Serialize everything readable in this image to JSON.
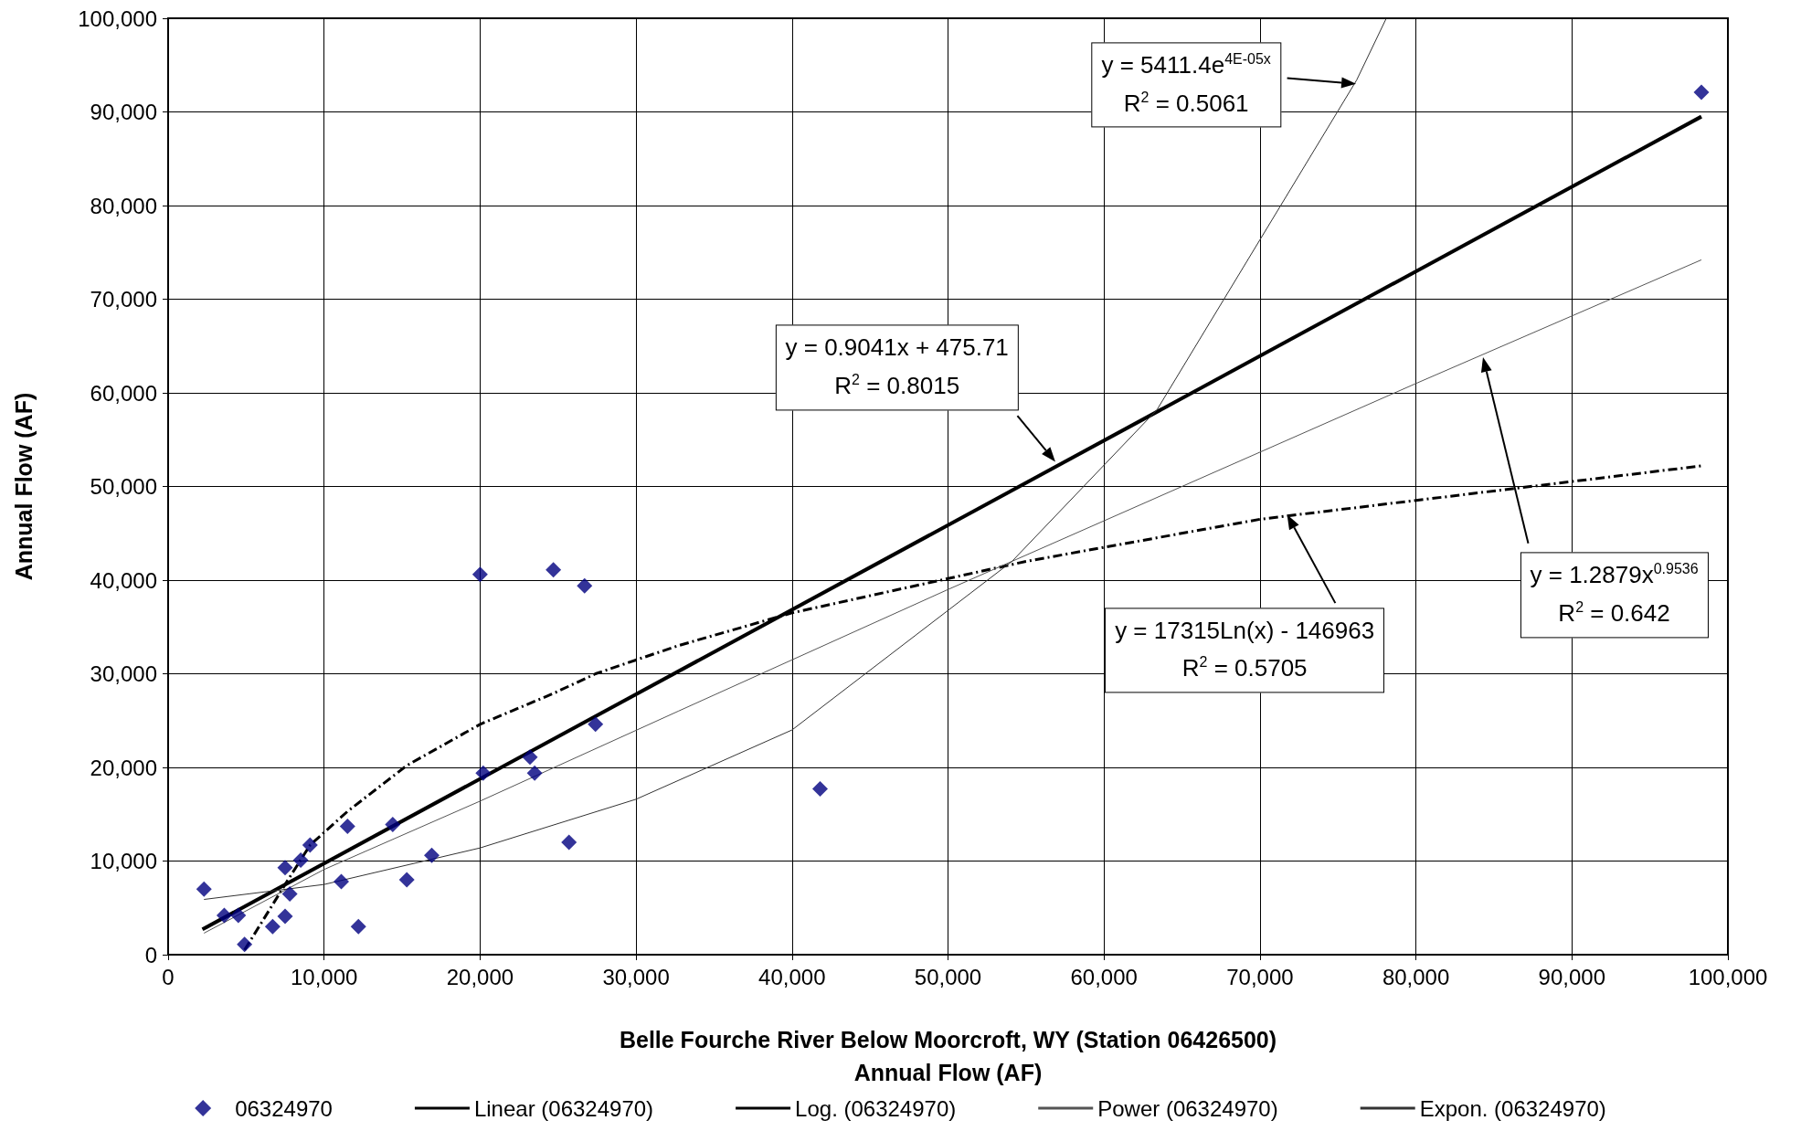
{
  "chart_data": {
    "type": "scatter",
    "xlabel": "Belle Fourche River Below Moorcroft, WY (Station 06426500)\nAnnual Flow (AF)",
    "ylabel": "Annual Flow (AF)",
    "xlim": [
      0,
      100000
    ],
    "xticks": [
      {
        "value": 0,
        "label": "0"
      },
      {
        "value": 10000,
        "label": "10,000"
      },
      {
        "value": 20000,
        "label": "20,000"
      },
      {
        "value": 30000,
        "label": "30,000"
      },
      {
        "value": 40000,
        "label": "40,000"
      },
      {
        "value": 50000,
        "label": "50,000"
      },
      {
        "value": 60000,
        "label": "60,000"
      },
      {
        "value": 70000,
        "label": "70,000"
      },
      {
        "value": 80000,
        "label": "80,000"
      },
      {
        "value": 90000,
        "label": "90,000"
      },
      {
        "value": 100000,
        "label": "100,000"
      }
    ],
    "ylim": [
      0,
      100000
    ],
    "yticks": [
      {
        "value": 0,
        "label": "0"
      },
      {
        "value": 10000,
        "label": "10,000"
      },
      {
        "value": 20000,
        "label": "20,000"
      },
      {
        "value": 30000,
        "label": "30,000"
      },
      {
        "value": 40000,
        "label": "40,000"
      },
      {
        "value": 50000,
        "label": "50,000"
      },
      {
        "value": 60000,
        "label": "60,000"
      },
      {
        "value": 70000,
        "label": "70,000"
      },
      {
        "value": 80000,
        "label": "80,000"
      },
      {
        "value": 90000,
        "label": "90,000"
      },
      {
        "value": 100000,
        "label": "100,000"
      }
    ],
    "grid": true,
    "legend": "bottom",
    "series": [
      {
        "name": "06324970",
        "marker": "diamond",
        "color": "#000080",
        "x": [
          2300,
          3600,
          4500,
          4900,
          6700,
          7500,
          7800,
          7500,
          8500,
          9100,
          11100,
          12200,
          11500,
          14400,
          15300,
          16900,
          20000,
          20200,
          24700,
          26700,
          23200,
          23500,
          27400,
          25700,
          41800,
          98300
        ],
        "values": [
          7000,
          4200,
          4200,
          1100,
          3000,
          4100,
          6500,
          9300,
          10100,
          11700,
          7800,
          3000,
          13700,
          13900,
          8000,
          10600,
          40600,
          19400,
          41100,
          39400,
          21100,
          19400,
          24600,
          12000,
          17700,
          92100
        ]
      },
      {
        "name": "Linear (06324970)",
        "type": "line",
        "marker": "none",
        "line_style": "solid",
        "color": "#000000",
        "x": [
          2200,
          98300
        ],
        "values": [
          2700,
          89500
        ]
      },
      {
        "name": "Log. (06324970)",
        "type": "line",
        "marker": "none",
        "line_style": "dashed",
        "color": "#000000",
        "x": [
          4900,
          7500,
          9100,
          11500,
          15300,
          20000,
          24700,
          27400,
          32700,
          40000,
          55000,
          70000,
          98300
        ],
        "values": [
          500,
          7500,
          11700,
          15300,
          20200,
          24600,
          27900,
          30000,
          33000,
          36500,
          42000,
          46500,
          52200
        ]
      },
      {
        "name": "Power (06324970)",
        "type": "line",
        "marker": "none",
        "line_style": "solid",
        "color": "#555555",
        "x": [
          2300,
          10000,
          20000,
          32700,
          50000,
          80000,
          98300
        ],
        "values": [
          2300,
          9100,
          16400,
          26000,
          39000,
          61000,
          74200
        ]
      },
      {
        "name": "Expon. (06324970)",
        "type": "line",
        "marker": "none",
        "line_style": "solid",
        "color": "#333333",
        "x": [
          2300,
          10000,
          20000,
          30000,
          40000,
          54100,
          63400,
          76200,
          78100
        ],
        "values": [
          5900,
          7500,
          11400,
          16600,
          24000,
          42000,
          58200,
          93400,
          100000
        ]
      }
    ],
    "annotations": [
      "y = 5411.4e$^{4E-05x}$\nR$^{2}$ = 0.5061",
      "y = 0.9041x + 475.71\nR$^{2}$ = 0.8015",
      "y = 17315Ln(x) - 146963\nR$^{2}$ = 0.5705",
      "y = 1.2879x$^{0.9536}$\nR$^{2}$ = 0.642"
    ]
  }
}
